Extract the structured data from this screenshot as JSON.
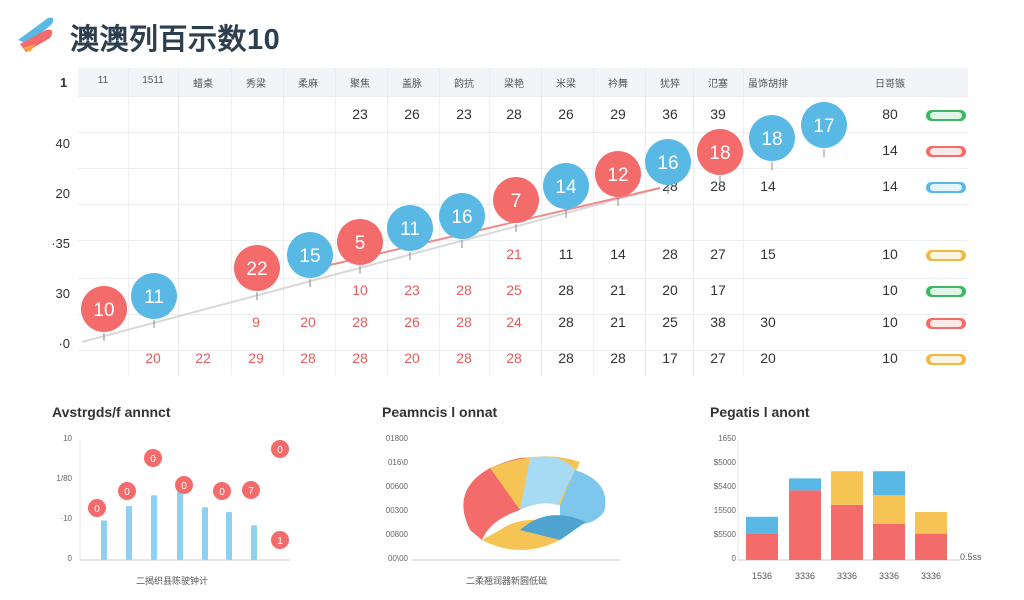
{
  "header": {
    "title": "澳澳列百示数10"
  },
  "table": {
    "corner": "1",
    "headers": [
      "11",
      "1511",
      "蜡桌",
      "秀梁",
      "柔麻",
      "聚焦",
      "盖脉",
      "韵抗",
      "梁艳",
      "米梁",
      "衿舞",
      "犹猝",
      "氾塞",
      "虽饰胡排",
      "日哥镞"
    ],
    "y_labels": [
      "40",
      "20",
      "·35",
      "30",
      "·0"
    ],
    "rows": [
      {
        "cells": [
          "",
          "",
          "",
          "",
          "",
          "23",
          "26",
          "23",
          "28",
          "26",
          "29",
          "36",
          "39",
          "",
          "80"
        ],
        "status_color": "#3cb763"
      },
      {
        "cells": [
          "",
          "",
          "",
          "",
          "",
          "",
          "",
          "",
          "",
          "",
          "",
          "",
          "",
          "",
          "14"
        ],
        "status_color": "#f36b6b"
      },
      {
        "cells": [
          "",
          "",
          "",
          "",
          "",
          "",
          "",
          "",
          "",
          "",
          "7",
          "28",
          "28",
          "14",
          "14"
        ],
        "status_color": "#5ab8e5"
      },
      {
        "cells": [
          "",
          "",
          "",
          "",
          "",
          "",
          "",
          "",
          "21",
          "11",
          "14",
          "28",
          "27",
          "15",
          "10"
        ],
        "status_color": "#f2b845"
      },
      {
        "cells": [
          "",
          "",
          "",
          "",
          "",
          "10",
          "23",
          "28",
          "25",
          "28",
          "21",
          "20",
          "17",
          "",
          "10"
        ],
        "status_color": "#3cb763"
      },
      {
        "cells": [
          "",
          "",
          "",
          "9",
          "20",
          "28",
          "26",
          "28",
          "24",
          "28",
          "21",
          "25",
          "38",
          "30",
          "10"
        ],
        "status_color": "#f36b6b"
      },
      {
        "cells": [
          "",
          "20",
          "22",
          "29",
          "28",
          "28",
          "20",
          "28",
          "28",
          "28",
          "28",
          "17",
          "27",
          "20",
          "10"
        ],
        "status_color": "#f2b845"
      }
    ],
    "extra_cells": [
      {
        "text": "7",
        "row_label": "r4c2"
      },
      {
        "text": "1",
        "row_label": "r5c2"
      },
      {
        "text": "20",
        "row_label": "r3c13"
      },
      {
        "text": "10",
        "row_label": "r4c14"
      },
      {
        "text": "17",
        "row_label": "r4c13"
      },
      {
        "text": "30",
        "row_label": "r5c14"
      },
      {
        "text": "10",
        "row_label": "r5c14b"
      }
    ]
  },
  "bubbles": [
    {
      "label": "10",
      "color": "#f36b6b"
    },
    {
      "label": "11",
      "color": "#5ab8e5"
    },
    {
      "label": "22",
      "color": "#f36b6b"
    },
    {
      "label": "15",
      "color": "#5ab8e5"
    },
    {
      "label": "5",
      "color": "#f36b6b"
    },
    {
      "label": "11",
      "color": "#5ab8e5"
    },
    {
      "label": "16",
      "color": "#5ab8e5"
    },
    {
      "label": "7",
      "color": "#f36b6b"
    },
    {
      "label": "14",
      "color": "#5ab8e5"
    },
    {
      "label": "12",
      "color": "#f36b6b"
    },
    {
      "label": "16",
      "color": "#5ab8e5"
    },
    {
      "label": "18",
      "color": "#f36b6b"
    },
    {
      "label": "18",
      "color": "#5ab8e5"
    },
    {
      "label": "17",
      "color": "#5ab8e5"
    }
  ],
  "panels": {
    "left": {
      "title": "Avstrgds/f annnct",
      "axis": [
        "10",
        "1/80",
        "·10",
        "0"
      ],
      "footer": "二揭织县陈驶钟计",
      "bar_values": [
        0.33,
        0.45,
        0.54,
        0.58,
        0.44,
        0.4,
        0.29
      ],
      "bubble_labels": [
        "0",
        "0",
        "0",
        "0",
        "0",
        "7",
        "0",
        "1"
      ]
    },
    "middle": {
      "title": "Peamncis l onnat",
      "axis": [
        "01800",
        "016\\0",
        "00600",
        "00300",
        "00800",
        "00\\00"
      ],
      "footer": "二柔翘润器新圆低础"
    },
    "right": {
      "title": "Pegatis l anont",
      "axis": [
        "1650",
        "$5000",
        "$5400",
        "15500",
        "$5500",
        "0"
      ],
      "x_labels": [
        "1536",
        "3336",
        "3336",
        "3336",
        "3336"
      ],
      "axis_end": "0.5ss",
      "stacks": [
        {
          "segments": [
            {
              "v": 0.22,
              "c": "#f36b6b"
            },
            {
              "v": 0.14,
              "c": "#5ab8e5"
            }
          ]
        },
        {
          "segments": [
            {
              "v": 0.58,
              "c": "#f36b6b"
            },
            {
              "v": 0.1,
              "c": "#5ab8e5"
            }
          ]
        },
        {
          "segments": [
            {
              "v": 0.46,
              "c": "#f36b6b"
            },
            {
              "v": 0.28,
              "c": "#f5c454"
            }
          ]
        },
        {
          "segments": [
            {
              "v": 0.3,
              "c": "#f36b6b"
            },
            {
              "v": 0.24,
              "c": "#f5c454"
            },
            {
              "v": 0.2,
              "c": "#5ab8e5"
            }
          ]
        },
        {
          "segments": [
            {
              "v": 0.22,
              "c": "#f36b6b"
            },
            {
              "v": 0.18,
              "c": "#f5c454"
            }
          ]
        }
      ]
    }
  },
  "colors": {
    "red": "#f36b6b",
    "blue": "#5ab8e5",
    "yellow": "#f5c454",
    "green": "#3cb763"
  }
}
